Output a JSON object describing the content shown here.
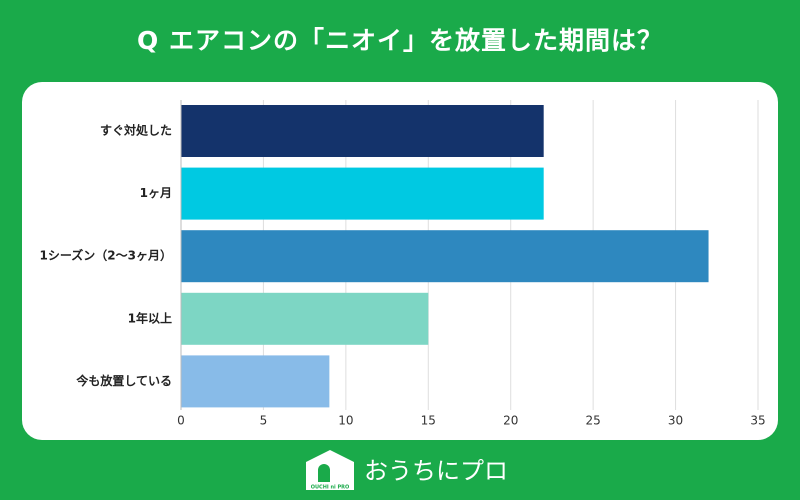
{
  "chart_data": {
    "type": "bar",
    "orientation": "horizontal",
    "title": "Q エアコンの「ニオイ」を放置した期間は？",
    "categories": [
      "すぐ対処した",
      "1ヶ月",
      "1シーズン（2～3ヶ月）",
      "1年以上",
      "今も放置している"
    ],
    "values": [
      22,
      22,
      32,
      15,
      9
    ],
    "colors": [
      "#14336b",
      "#00c9e2",
      "#2e88bf",
      "#7dd6c4",
      "#88bbe8"
    ],
    "xlim": [
      0,
      35
    ],
    "xticks": [
      0,
      5,
      10,
      15,
      20,
      25,
      30,
      35
    ],
    "grid": true
  },
  "logo": {
    "text": "おうちにプロ",
    "mark": "OUCHI ni PRO"
  }
}
